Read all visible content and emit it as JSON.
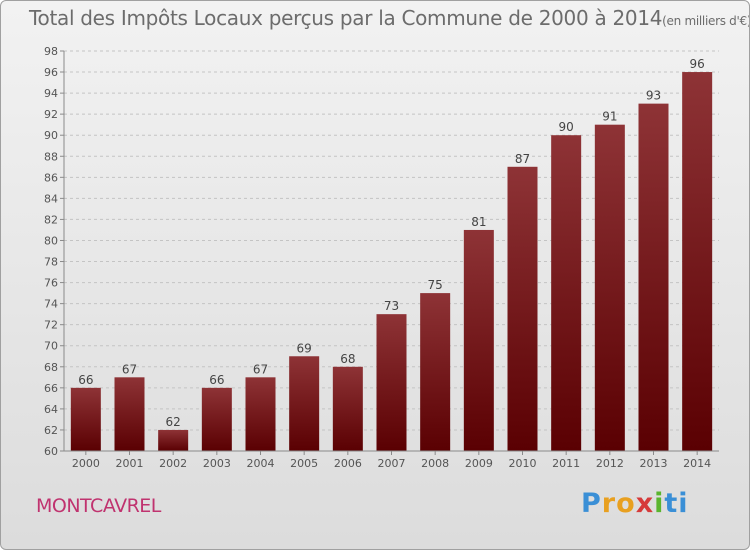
{
  "chart_data": {
    "type": "bar",
    "title": "Total des Impôts Locaux perçus par la Commune de 2000 à 2014",
    "unit": "(en milliers d'€)",
    "categories": [
      "2000",
      "2001",
      "2002",
      "2003",
      "2004",
      "2005",
      "2006",
      "2007",
      "2008",
      "2009",
      "2010",
      "2011",
      "2012",
      "2013",
      "2014"
    ],
    "values": [
      66,
      67,
      62,
      66,
      67,
      69,
      68,
      73,
      75,
      81,
      87,
      90,
      91,
      93,
      96
    ],
    "ylim": [
      60,
      98
    ],
    "yticks": [
      60,
      62,
      64,
      66,
      68,
      70,
      72,
      74,
      76,
      78,
      80,
      82,
      84,
      86,
      88,
      90,
      92,
      94,
      96,
      98
    ],
    "xlabel": "",
    "ylabel": "",
    "bar_color": "#7a1416",
    "grid": true
  },
  "commune_name": "MONTCAVREL",
  "logo": {
    "letters": [
      "P",
      "r",
      "o",
      "x",
      "i",
      "t",
      "i"
    ],
    "colors": [
      "#3a8fd6",
      "#e8a020",
      "#e8a020",
      "#d63a3a",
      "#5ab52e",
      "#3a8fd6",
      "#3a8fd6"
    ]
  }
}
